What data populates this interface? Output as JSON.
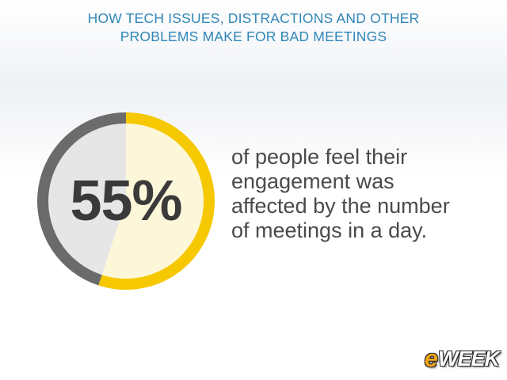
{
  "header": {
    "title_line1": "HOW TECH ISSUES, DISTRACTIONS AND OTHER",
    "title_line2": "PROBLEMS MAKE FOR BAD MEETINGS"
  },
  "stat": {
    "value": "55%",
    "fraction": 0.55,
    "description_lines": [
      "of people feel their",
      "engagement was",
      "affected by the number",
      "of meetings in a day."
    ]
  },
  "logo": {
    "e": "e",
    "rest": "WEEK"
  },
  "colors": {
    "header_text": "#2f86b8",
    "ring_highlight": "#f5c800",
    "ring_rest": "#6b6b6b",
    "fill_highlight": "#fdf7d9",
    "fill_rest": "#e6e6e6",
    "value_text": "#3a3a3a",
    "body_text": "#4a4a4a",
    "logo_accent": "#f2a51a"
  }
}
